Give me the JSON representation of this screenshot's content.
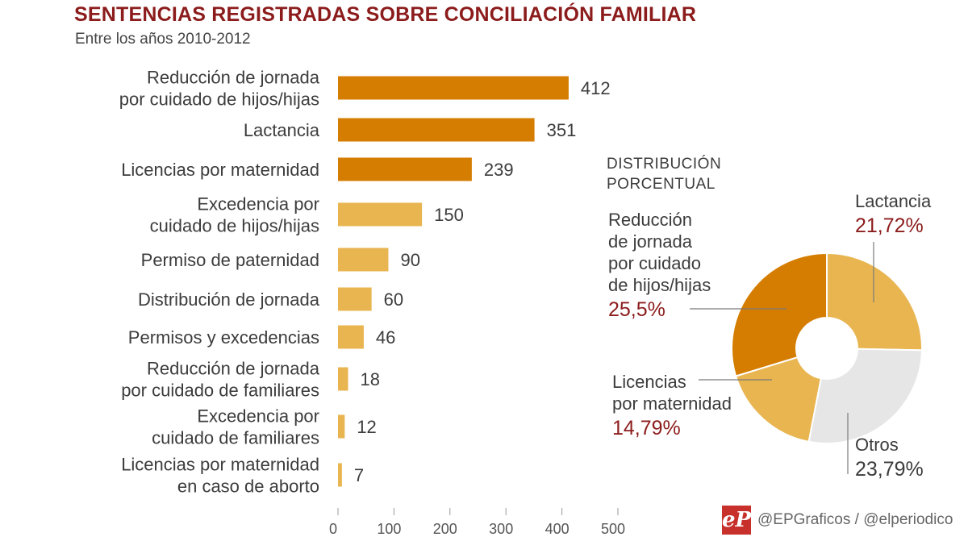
{
  "title": "SENTENCIAS REGISTRADAS SOBRE CONCILIACIÓN FAMILIAR",
  "subtitle": "Entre los años 2010-2012",
  "chart_data": [
    {
      "type": "bar",
      "orientation": "horizontal",
      "categories": [
        [
          "Reducción de jornada",
          "por cuidado de hijos/hijas"
        ],
        [
          "Lactancia"
        ],
        [
          "Licencias por maternidad"
        ],
        [
          "Excedencia por",
          "cuidado de hijos/hijas"
        ],
        [
          "Permiso de paternidad"
        ],
        [
          "Distribución de jornada"
        ],
        [
          "Permisos y excedencias"
        ],
        [
          "Reducción de jornada",
          "por cuidado de familiares"
        ],
        [
          "Excedencia por",
          "cuidado de familiares"
        ],
        [
          "Licencias por maternidad",
          "en caso de aborto"
        ]
      ],
      "values": [
        412,
        351,
        239,
        150,
        90,
        60,
        46,
        18,
        12,
        7
      ],
      "value_labels": [
        "412",
        "351",
        "239",
        "150",
        "90",
        "60",
        "46",
        "18",
        "12",
        "7"
      ],
      "highlight": [
        true,
        true,
        true,
        false,
        false,
        false,
        false,
        false,
        false,
        false
      ],
      "xlim": [
        0,
        500
      ],
      "ticks": [
        0,
        100,
        200,
        300,
        400,
        500
      ],
      "tick_labels": [
        "0",
        "100",
        "200",
        "300",
        "400",
        "500"
      ],
      "colors": {
        "highlight": "#d47d00",
        "normal": "#e8b550"
      }
    },
    {
      "type": "pie",
      "donut": true,
      "heading": [
        "DISTRIBUCIÓN",
        "PORCENTUAL"
      ],
      "slices": [
        {
          "name": [
            "Reducción",
            "de jornada",
            "por cuidado",
            "de hijos/hijas"
          ],
          "value": 25.5,
          "label": "25,5%",
          "color": "#d47d00",
          "accent": true
        },
        {
          "name": [
            "Lactancia"
          ],
          "value": 21.72,
          "label": "21,72%",
          "color": "#e8b550",
          "accent": true
        },
        {
          "name": [
            "Otros"
          ],
          "value": 23.79,
          "label": "23,79%",
          "color": "#e6e6e6",
          "accent": false
        },
        {
          "name": [
            "Licencias",
            "por maternidad"
          ],
          "value": 14.79,
          "label": "14,79%",
          "color": "#e8b550",
          "accent": true
        }
      ]
    }
  ],
  "footer": {
    "credit": "@EPGraficos / @elperiodico",
    "logo": "eP"
  }
}
